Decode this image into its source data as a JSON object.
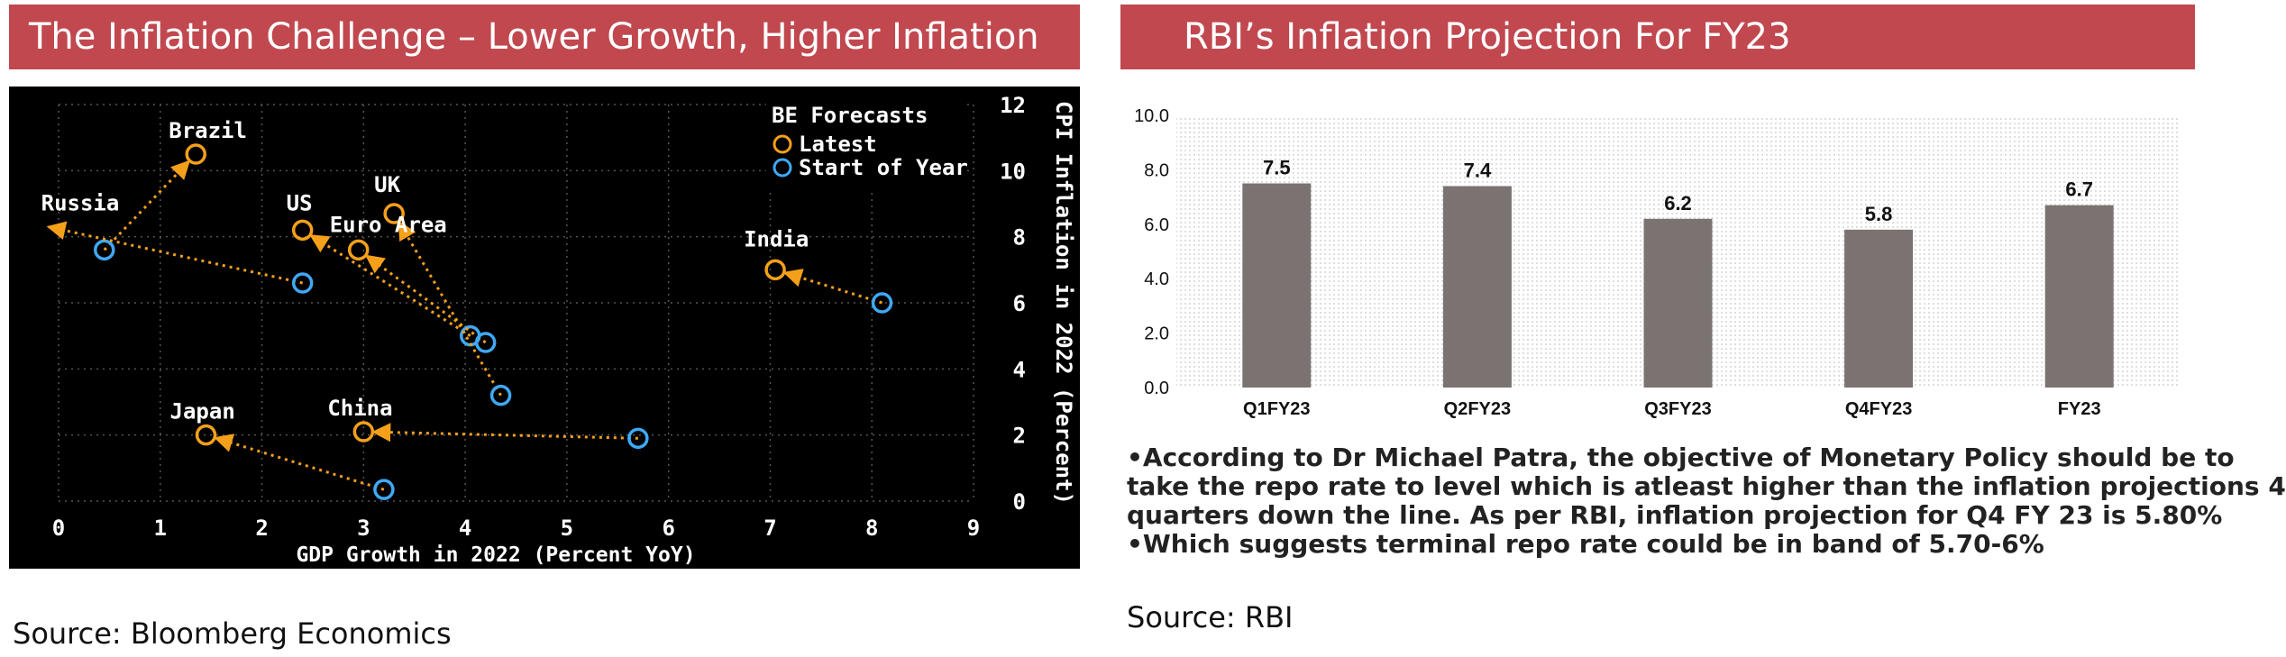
{
  "left": {
    "banner": "The Inflation Challenge – Lower Growth, Higher Inflation",
    "source": "Source: Bloomberg Economics"
  },
  "right": {
    "banner": "RBI’s Inflation Projection For FY23",
    "bullets": [
      "•According to Dr Michael Patra, the objective of Monetary Policy should be to",
      "take the repo rate to level which is atleast higher than the inflation projections 4",
      "quarters down the line. As per RBI, inflation projection for Q4 FY 23 is 5.80%",
      "•Which suggests terminal repo rate could be in band of 5.70-6%"
    ],
    "source": "Source: RBI"
  },
  "colors": {
    "banner": "#c1484f",
    "latest": "#f5a01a",
    "start": "#3fa9f5",
    "bar": "#7a7372"
  },
  "chart_data": [
    {
      "type": "scatter",
      "xlabel": "GDP Growth in 2022 (Percent YoY)",
      "ylabel": "CPI Inflation in 2022 (Percent)",
      "xlim": [
        0,
        9
      ],
      "ylim": [
        0,
        12
      ],
      "xticks": [
        0,
        1,
        2,
        3,
        4,
        5,
        6,
        7,
        8,
        9
      ],
      "yticks": [
        0,
        2,
        4,
        6,
        8,
        10,
        12
      ],
      "legend": {
        "title": "BE Forecasts",
        "position": "top-right",
        "entries": [
          "Latest",
          "Start of Year"
        ]
      },
      "grid": true,
      "points": [
        {
          "label": "Brazil",
          "latest": [
            1.35,
            10.5
          ],
          "start": [
            0.45,
            7.6
          ]
        },
        {
          "label": "Russia",
          "latest": [
            -0.1,
            8.3
          ],
          "start": [
            2.4,
            6.6
          ],
          "arrow_exits_plot": true
        },
        {
          "label": "US",
          "latest": [
            2.4,
            8.2
          ],
          "start": [
            4.05,
            5.0
          ]
        },
        {
          "label": "UK",
          "latest": [
            3.3,
            8.7
          ],
          "start": [
            4.35,
            3.2
          ]
        },
        {
          "label": "Euro Area",
          "latest": [
            2.95,
            7.6
          ],
          "start": [
            4.2,
            4.8
          ]
        },
        {
          "label": "India",
          "latest": [
            7.05,
            7.0
          ],
          "start": [
            8.1,
            6.0
          ]
        },
        {
          "label": "Japan",
          "latest": [
            1.45,
            2.0
          ],
          "start": [
            3.2,
            0.35
          ]
        },
        {
          "label": "China",
          "latest": [
            3.0,
            2.1
          ],
          "start": [
            5.7,
            1.9
          ]
        }
      ]
    },
    {
      "type": "bar",
      "categories": [
        "Q1FY23",
        "Q2FY23",
        "Q3FY23",
        "Q4FY23",
        "FY23"
      ],
      "values": [
        7.5,
        7.4,
        6.2,
        5.8,
        6.7
      ],
      "ylim": [
        0,
        10
      ],
      "yticks": [
        "0.0",
        "2.0",
        "4.0",
        "6.0",
        "8.0",
        "10.0"
      ],
      "data_labels": [
        "7.5",
        "7.4",
        "6.2",
        "5.8",
        "6.7"
      ]
    }
  ]
}
